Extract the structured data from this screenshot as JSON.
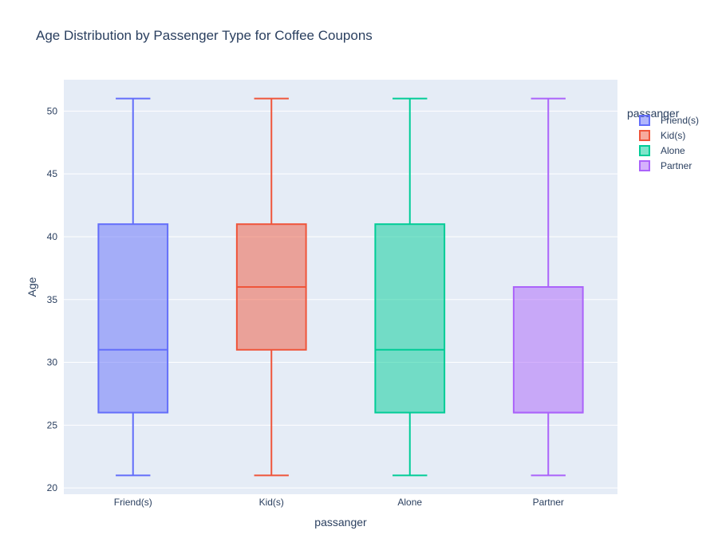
{
  "chart_data": {
    "type": "box",
    "title": "Age Distribution by Passenger Type for Coffee Coupons",
    "xlabel": "passanger",
    "ylabel": "Age",
    "legend_title": "passanger",
    "legend_position": "right",
    "grid": true,
    "ylim": [
      19.5,
      52.5
    ],
    "yticks": [
      20,
      25,
      30,
      35,
      40,
      45,
      50
    ],
    "categories": [
      "Friend(s)",
      "Kid(s)",
      "Alone",
      "Partner"
    ],
    "series": [
      {
        "name": "Friend(s)",
        "color": "#636efa",
        "min": 21,
        "q1": 26,
        "median": 31,
        "q3": 41,
        "max": 51
      },
      {
        "name": "Kid(s)",
        "color": "#EF553B",
        "min": 21,
        "q1": 31,
        "median": 36,
        "q3": 41,
        "max": 51
      },
      {
        "name": "Alone",
        "color": "#00cc96",
        "min": 21,
        "q1": 26,
        "median": 31,
        "q3": 41,
        "max": 51
      },
      {
        "name": "Partner",
        "color": "#ab63fa",
        "min": 21,
        "q1": 26,
        "median": 26,
        "q3": 36,
        "max": 51
      }
    ]
  }
}
